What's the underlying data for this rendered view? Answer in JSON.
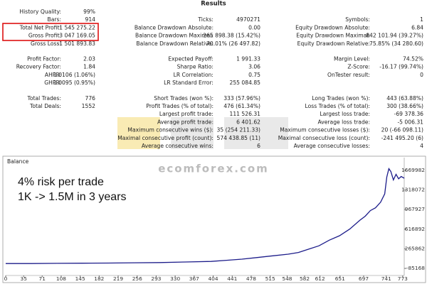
{
  "results": {
    "title": "Results",
    "sections": [
      [
        [
          {
            "label": "History Quality:",
            "value": "99%"
          },
          null,
          null
        ],
        [
          {
            "label": "Bars:",
            "value": "914"
          },
          {
            "label": "Ticks:",
            "value": "4970271"
          },
          {
            "label": "Symbols:",
            "value": "1"
          }
        ],
        [
          {
            "label": "Total Net Profit:",
            "value": "1 545 275.22"
          },
          {
            "label": "Balance Drawdown Absolute:",
            "value": "0.00"
          },
          {
            "label": "Equity Drawdown Absolute:",
            "value": "6.84"
          }
        ],
        [
          {
            "label": "Gross Profit:",
            "value": "3 047 169.05"
          },
          {
            "label": "Balance Drawdown Maximal:",
            "value": "265 898.38 (15.42%)"
          },
          {
            "label": "Equity Drawdown Maximal:",
            "value": "842 101.94 (39.27%)"
          }
        ],
        [
          {
            "label": "Gross Loss:",
            "value": "-1 501 893.83"
          },
          {
            "label": "Balance Drawdown Relative:",
            "value": "70.01% (26 497.82)"
          },
          {
            "label": "Equity Drawdown Relative:",
            "value": "75.85% (34 280.60)"
          }
        ]
      ],
      [
        [
          {
            "label": "Profit Factor:",
            "value": "2.03"
          },
          {
            "label": "Expected Payoff:",
            "value": "1 991.33"
          },
          {
            "label": "Margin Level:",
            "value": "74.52%"
          }
        ],
        [
          {
            "label": "Recovery Factor:",
            "value": "1.84"
          },
          {
            "label": "Sharpe Ratio:",
            "value": "3.06"
          },
          {
            "label": "Z-Score:",
            "value": "-16.17 (99.74%)"
          }
        ],
        [
          {
            "label": "AHPR:",
            "value": "1.0106 (1.06%)"
          },
          {
            "label": "LR Correlation:",
            "value": "0.75"
          },
          {
            "label": "OnTester result:",
            "value": "0"
          }
        ],
        [
          {
            "label": "GHPR:",
            "value": "1.0095 (0.95%)"
          },
          {
            "label": "LR Standard Error:",
            "value": "255 084.85"
          },
          null
        ]
      ],
      [
        [
          {
            "label": "Total Trades:",
            "value": "776"
          },
          {
            "label": "Short Trades (won %):",
            "value": "333 (57.96%)"
          },
          {
            "label": "Long Trades (won %):",
            "value": "443 (63.88%)"
          }
        ],
        [
          {
            "label": "Total Deals:",
            "value": "1552"
          },
          {
            "label": "Profit Trades (% of total):",
            "value": "476 (61.34%)"
          },
          {
            "label": "Loss Trades (% of total):",
            "value": "300 (38.66%)"
          }
        ],
        [
          null,
          {
            "label": "Largest profit trade:",
            "value": "111 526.31"
          },
          {
            "label": "Largest loss trade:",
            "value": "-69 378.36"
          }
        ],
        [
          null,
          {
            "label": "Average profit trade:",
            "value": "6 401.62"
          },
          {
            "label": "Average loss trade:",
            "value": "-5 006.31"
          }
        ],
        [
          null,
          {
            "label": "Maximum consecutive wins ($):",
            "value": "35 (254 211.33)"
          },
          {
            "label": "Maximum consecutive losses ($):",
            "value": "20 (-66 098.11)"
          }
        ],
        [
          null,
          {
            "label": "Maximal consecutive profit (count):",
            "value": "574 438.85 (11)"
          },
          {
            "label": "Maximal consecutive loss (count):",
            "value": "-241 495.20 (6)"
          }
        ],
        [
          null,
          {
            "label": "Average consecutive wins:",
            "value": "6"
          },
          {
            "label": "Average consecutive losses:",
            "value": "4"
          }
        ]
      ]
    ]
  },
  "watermark": "ecomforex.com",
  "chart_data": {
    "type": "line",
    "title": "Balance",
    "annotations": [
      "4% risk per trade",
      "1K -> 1.5M in 3 years"
    ],
    "x": [
      0,
      50,
      100,
      150,
      200,
      250,
      300,
      350,
      400,
      430,
      460,
      490,
      520,
      550,
      570,
      590,
      610,
      630,
      650,
      670,
      690,
      700,
      710,
      720,
      730,
      738,
      742,
      746,
      750,
      755,
      760,
      765,
      770,
      776
    ],
    "series": [
      {
        "color": "#1c1c8a",
        "values": [
          1000,
          2000,
          5000,
          8000,
          10000,
          15000,
          20000,
          30000,
          40000,
          60000,
          80000,
          110000,
          140000,
          170000,
          200000,
          260000,
          320000,
          420000,
          500000,
          620000,
          780000,
          850000,
          950000,
          1000000,
          1100000,
          1250000,
          1550000,
          1700000,
          1650000,
          1500000,
          1600000,
          1520000,
          1560000,
          1530000
        ]
      }
    ],
    "xlim": [
      0,
      776
    ],
    "xticks": [
      0,
      35,
      71,
      108,
      145,
      182,
      219,
      256,
      293,
      330,
      367,
      404,
      441,
      478,
      515,
      548,
      582,
      612,
      651,
      697,
      741,
      773
    ],
    "ylim": [
      -212000,
      1797000
    ],
    "yticks": [
      -85168,
      265862,
      616892,
      967927,
      1318072,
      1669982
    ]
  }
}
